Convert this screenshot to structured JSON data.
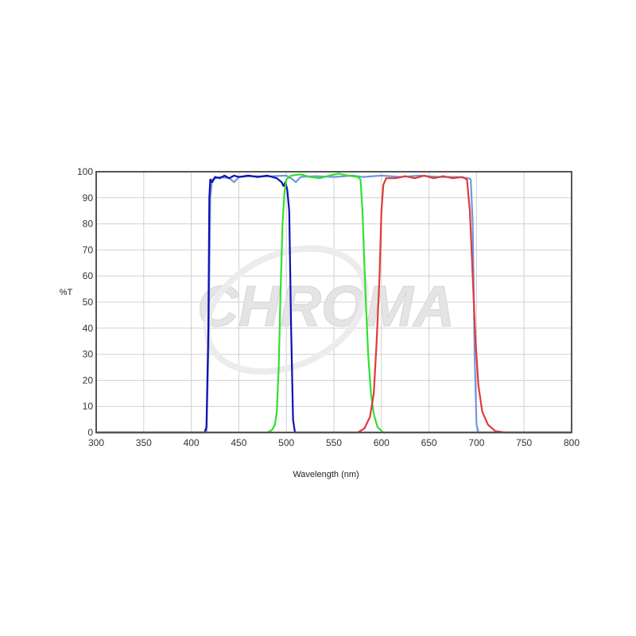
{
  "chart_data": {
    "type": "line",
    "title": "",
    "xlabel": "Wavelength (nm)",
    "ylabel": "%T",
    "xlim": [
      300,
      800
    ],
    "ylim": [
      0,
      100
    ],
    "xticks": [
      300,
      350,
      400,
      450,
      500,
      550,
      600,
      650,
      700,
      750,
      800
    ],
    "yticks": [
      0,
      10,
      20,
      30,
      40,
      50,
      60,
      70,
      80,
      90,
      100
    ],
    "grid": true,
    "watermark": "CHROMA",
    "series": [
      {
        "color": "#6f98e0",
        "points": [
          [
            300,
            0
          ],
          [
            416,
            0
          ],
          [
            418,
            30
          ],
          [
            420,
            90
          ],
          [
            422,
            97
          ],
          [
            430,
            98
          ],
          [
            440,
            97.5
          ],
          [
            445,
            96
          ],
          [
            450,
            98
          ],
          [
            460,
            98.3
          ],
          [
            480,
            98.2
          ],
          [
            500,
            98.5
          ],
          [
            505,
            97.5
          ],
          [
            510,
            96
          ],
          [
            515,
            98
          ],
          [
            530,
            98.3
          ],
          [
            550,
            98
          ],
          [
            570,
            98.5
          ],
          [
            580,
            98
          ],
          [
            600,
            98.5
          ],
          [
            620,
            98
          ],
          [
            640,
            98.5
          ],
          [
            660,
            98
          ],
          [
            680,
            98
          ],
          [
            692,
            97.5
          ],
          [
            694,
            97
          ],
          [
            696,
            80
          ],
          [
            698,
            30
          ],
          [
            700,
            3
          ],
          [
            702,
            0
          ],
          [
            800,
            0
          ]
        ]
      },
      {
        "color": "#1010b0",
        "points": [
          [
            300,
            0
          ],
          [
            414,
            0
          ],
          [
            416,
            2
          ],
          [
            418,
            40
          ],
          [
            419,
            90
          ],
          [
            420,
            97
          ],
          [
            422,
            96
          ],
          [
            425,
            98
          ],
          [
            430,
            97.5
          ],
          [
            435,
            98.5
          ],
          [
            440,
            97.5
          ],
          [
            445,
            98.5
          ],
          [
            450,
            98
          ],
          [
            460,
            98.5
          ],
          [
            470,
            98
          ],
          [
            480,
            98.5
          ],
          [
            490,
            97.5
          ],
          [
            495,
            96
          ],
          [
            497,
            94.5
          ],
          [
            499,
            96
          ],
          [
            501,
            93
          ],
          [
            503,
            85
          ],
          [
            505,
            40
          ],
          [
            507,
            5
          ],
          [
            509,
            0
          ],
          [
            800,
            0
          ]
        ]
      },
      {
        "color": "#30e030",
        "points": [
          [
            300,
            0
          ],
          [
            480,
            0
          ],
          [
            485,
            1
          ],
          [
            488,
            3
          ],
          [
            490,
            8
          ],
          [
            492,
            25
          ],
          [
            494,
            55
          ],
          [
            496,
            80
          ],
          [
            498,
            92
          ],
          [
            500,
            97
          ],
          [
            505,
            98.5
          ],
          [
            515,
            99
          ],
          [
            525,
            98
          ],
          [
            535,
            97.5
          ],
          [
            545,
            98.5
          ],
          [
            555,
            99.3
          ],
          [
            565,
            98.5
          ],
          [
            575,
            98
          ],
          [
            578,
            97
          ],
          [
            580,
            85
          ],
          [
            583,
            55
          ],
          [
            586,
            30
          ],
          [
            589,
            15
          ],
          [
            592,
            7
          ],
          [
            596,
            2
          ],
          [
            602,
            0
          ],
          [
            800,
            0
          ]
        ]
      },
      {
        "color": "#e03a3a",
        "points": [
          [
            300,
            0
          ],
          [
            575,
            0
          ],
          [
            582,
            1.5
          ],
          [
            588,
            6
          ],
          [
            592,
            15
          ],
          [
            595,
            35
          ],
          [
            598,
            60
          ],
          [
            600,
            85
          ],
          [
            602,
            95
          ],
          [
            605,
            97.5
          ],
          [
            615,
            97.5
          ],
          [
            625,
            98.3
          ],
          [
            635,
            97.5
          ],
          [
            645,
            98.5
          ],
          [
            655,
            97.5
          ],
          [
            665,
            98.3
          ],
          [
            675,
            97.5
          ],
          [
            685,
            98
          ],
          [
            690,
            97
          ],
          [
            693,
            85
          ],
          [
            696,
            60
          ],
          [
            699,
            35
          ],
          [
            702,
            18
          ],
          [
            706,
            8
          ],
          [
            712,
            3
          ],
          [
            720,
            0.5
          ],
          [
            730,
            0
          ],
          [
            800,
            0
          ]
        ]
      }
    ]
  }
}
